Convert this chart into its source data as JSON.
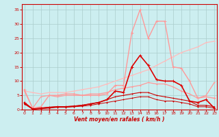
{
  "title": "",
  "xlabel": "Vent moyen/en rafales ( km/h )",
  "bg_color": "#cceef0",
  "grid_color": "#aacccc",
  "x_values": [
    0,
    1,
    2,
    3,
    4,
    5,
    6,
    7,
    8,
    9,
    10,
    11,
    12,
    13,
    14,
    15,
    16,
    17,
    18,
    19,
    20,
    21,
    22,
    23
  ],
  "series": [
    {
      "name": "light_pink_diagonal",
      "color": "#ffbbbb",
      "linewidth": 0.9,
      "markersize": 2.0,
      "y": [
        6.5,
        6.0,
        5.5,
        6.0,
        6.0,
        6.0,
        6.5,
        7.0,
        7.5,
        8.0,
        9.0,
        10.0,
        11.0,
        12.0,
        13.0,
        14.0,
        15.5,
        17.0,
        18.5,
        20.0,
        21.0,
        22.0,
        23.5,
        24.0
      ]
    },
    {
      "name": "light_pink_peak",
      "color": "#ff9999",
      "linewidth": 1.0,
      "markersize": 2.5,
      "y": [
        7.0,
        0.5,
        1.0,
        5.0,
        5.0,
        5.5,
        5.5,
        5.0,
        5.0,
        5.0,
        5.5,
        8.5,
        8.5,
        27.0,
        35.0,
        25.0,
        31.0,
        31.0,
        15.0,
        14.5,
        10.0,
        4.0,
        4.5,
        4.0
      ]
    },
    {
      "name": "medium_pink",
      "color": "#ff9999",
      "linewidth": 0.9,
      "markersize": 2.0,
      "y": [
        6.5,
        0.5,
        4.5,
        5.0,
        4.5,
        5.0,
        5.0,
        5.0,
        5.5,
        5.5,
        6.0,
        7.0,
        7.5,
        8.0,
        8.5,
        9.5,
        9.0,
        9.0,
        8.0,
        6.5,
        5.5,
        4.0,
        5.0,
        9.5
      ]
    },
    {
      "name": "dark_red_peak",
      "color": "#dd0000",
      "linewidth": 1.2,
      "markersize": 2.5,
      "y": [
        2.5,
        0.2,
        0.5,
        0.8,
        1.0,
        1.0,
        1.2,
        1.5,
        2.0,
        2.5,
        3.5,
        6.5,
        6.0,
        15.0,
        19.0,
        15.5,
        10.5,
        10.0,
        10.0,
        8.5,
        3.0,
        2.5,
        3.5,
        0.5
      ]
    },
    {
      "name": "dark_red_flat",
      "color": "#cc0000",
      "linewidth": 0.8,
      "markersize": 2.0,
      "y": [
        2.0,
        0.2,
        0.5,
        0.8,
        1.0,
        1.0,
        1.2,
        1.5,
        2.0,
        2.5,
        3.5,
        4.5,
        5.0,
        5.5,
        6.0,
        6.0,
        5.0,
        4.5,
        4.0,
        3.5,
        3.0,
        1.5,
        1.5,
        1.0
      ]
    },
    {
      "name": "dark_red_low",
      "color": "#cc0000",
      "linewidth": 0.7,
      "markersize": 1.8,
      "y": [
        2.0,
        0.2,
        0.3,
        0.5,
        0.8,
        0.8,
        1.0,
        1.2,
        1.5,
        2.0,
        2.5,
        3.0,
        3.5,
        4.0,
        4.5,
        4.5,
        3.5,
        3.0,
        3.0,
        2.5,
        2.0,
        1.0,
        1.0,
        0.5
      ]
    }
  ],
  "xlim": [
    -0.3,
    23.3
  ],
  "ylim": [
    0,
    37
  ],
  "yticks": [
    0,
    5,
    10,
    15,
    20,
    25,
    30,
    35
  ],
  "xticks": [
    0,
    1,
    2,
    3,
    4,
    5,
    6,
    7,
    8,
    9,
    10,
    11,
    12,
    13,
    14,
    15,
    16,
    17,
    18,
    19,
    20,
    21,
    22,
    23
  ]
}
